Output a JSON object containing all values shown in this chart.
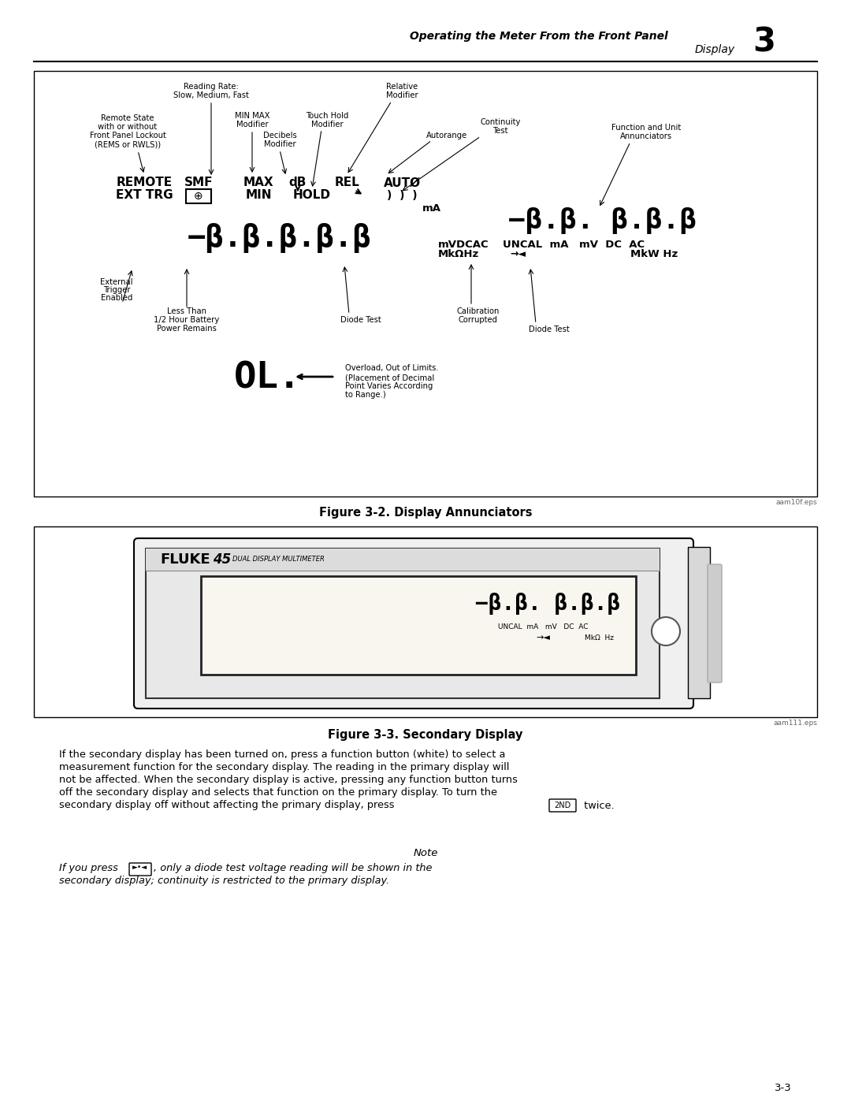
{
  "page_bg": "#ffffff",
  "header_text1": "Operating the Meter From the Front Panel",
  "header_text2": "Display",
  "header_chapter": "3",
  "footer_page": "3-3",
  "fig1_caption": "Figure 3-2. Display Annunciators",
  "fig1_file": "aam10f.eps",
  "fig2_caption": "Figure 3-3. Secondary Display",
  "fig2_file": "aam111.eps"
}
